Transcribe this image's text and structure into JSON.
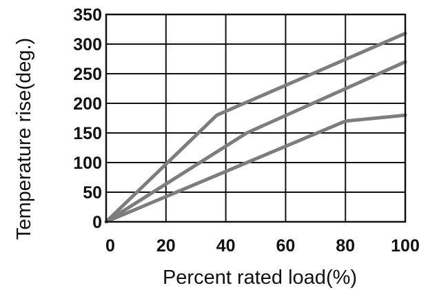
{
  "chart_data": {
    "type": "line",
    "title": "",
    "xlabel": "Percent rated load(%)",
    "ylabel": "Temperature rise(deg.)",
    "xlim": [
      0,
      100
    ],
    "ylim": [
      0,
      350
    ],
    "xticks": [
      "0",
      "20",
      "40",
      "60",
      "80",
      "100"
    ],
    "yticks": [
      "0",
      "50",
      "100",
      "150",
      "200",
      "250",
      "300",
      "350"
    ],
    "grid": true,
    "legend": "none",
    "series_color": "#7d7d7d",
    "series": [
      {
        "x": [
          0,
          37,
          100
        ],
        "y": [
          0,
          180,
          318
        ]
      },
      {
        "x": [
          0,
          47,
          100
        ],
        "y": [
          0,
          150,
          270
        ]
      },
      {
        "x": [
          0,
          80,
          100
        ],
        "y": [
          0,
          170,
          180
        ]
      }
    ]
  }
}
